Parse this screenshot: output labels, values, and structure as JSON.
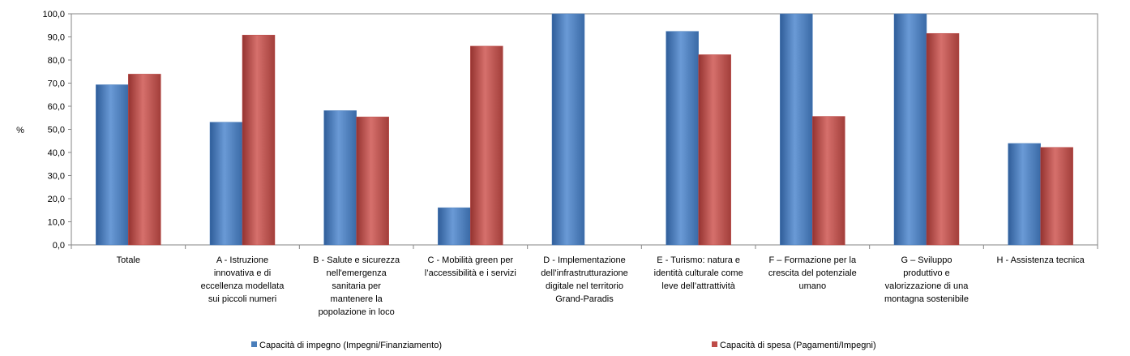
{
  "chart_data": {
    "type": "bar",
    "ylabel": "%",
    "ylim": [
      0,
      100
    ],
    "yticks": [
      "0,0",
      "10,0",
      "20,0",
      "30,0",
      "40,0",
      "50,0",
      "60,0",
      "70,0",
      "80,0",
      "90,0",
      "100,0"
    ],
    "grid": false,
    "legend_position": "bottom",
    "categories": [
      "Totale",
      "A - Istruzione innovativa e di eccellenza modellata sui piccoli numeri",
      "B - Salute e sicurezza nell'emergenza sanitaria per mantenere la popolazione in loco",
      "C - Mobilità green per l’accessibilità e i servizi",
      "D - Implementazione dell’infrastrutturazione digitale nel territorio Grand-Paradis",
      "E - Turismo: natura e identità culturale come leve dell’attrattività",
      "F – Formazione per la crescita del potenziale umano",
      "G – Sviluppo produttivo e valorizzazione di una montagna sostenibile",
      "H - Assistenza tecnica"
    ],
    "category_lines": [
      [
        "Totale"
      ],
      [
        "A - Istruzione",
        "innovativa e di",
        "eccellenza modellata",
        "sui piccoli numeri"
      ],
      [
        "B - Salute e sicurezza",
        "nell'emergenza",
        "sanitaria per",
        "mantenere la",
        "popolazione in loco"
      ],
      [
        "C - Mobilità green per",
        "l’accessibilità e i servizi"
      ],
      [
        "D - Implementazione",
        "dell’infrastrutturazione",
        "digitale nel territorio",
        "Grand-Paradis"
      ],
      [
        "E - Turismo: natura e",
        "identità culturale come",
        "leve dell’attrattività"
      ],
      [
        "F – Formazione per la",
        "crescita del potenziale",
        "umano"
      ],
      [
        "G – Sviluppo",
        "produttivo e",
        "valorizzazione di una",
        "montagna sostenibile"
      ],
      [
        "H - Assistenza tecnica"
      ]
    ],
    "series": [
      {
        "name": "Capacità di impegno (Impegni/Finanziamento)",
        "color": "#4a7ebb",
        "values": [
          69.3,
          53.1,
          58.1,
          16.1,
          100.0,
          92.4,
          100.0,
          100.0,
          43.9
        ]
      },
      {
        "name": "Capacità di spesa (Pagamenti/Impegni)",
        "color": "#be4b48",
        "values": [
          73.9,
          90.8,
          55.4,
          86.0,
          null,
          82.3,
          55.6,
          91.5,
          42.2
        ]
      }
    ]
  }
}
